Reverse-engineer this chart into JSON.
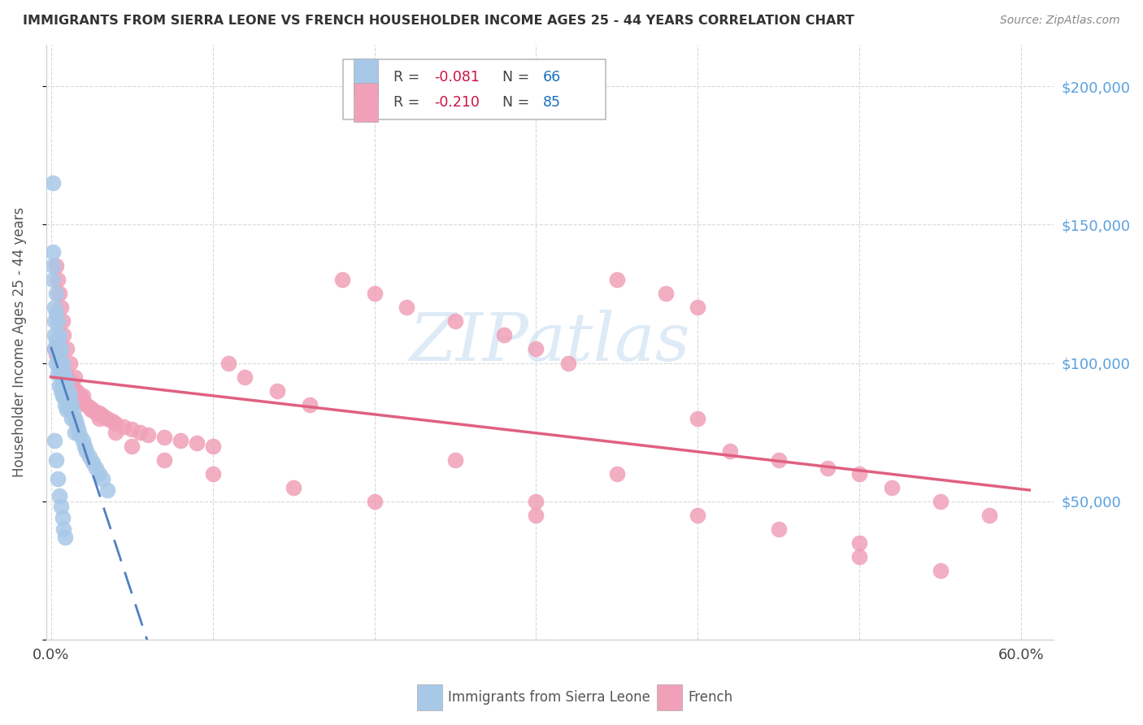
{
  "title": "IMMIGRANTS FROM SIERRA LEONE VS FRENCH HOUSEHOLDER INCOME AGES 25 - 44 YEARS CORRELATION CHART",
  "source": "Source: ZipAtlas.com",
  "ylabel": "Householder Income Ages 25 - 44 years",
  "ytick_values": [
    0,
    50000,
    100000,
    150000,
    200000
  ],
  "ytick_labels": [
    "",
    "$50,000",
    "$100,000",
    "$150,000",
    "$200,000"
  ],
  "ylim": [
    0,
    215000
  ],
  "xlim": [
    -0.003,
    0.62
  ],
  "bg_color": "#ffffff",
  "grid_color": "#d0d0d0",
  "sierra_scatter_color": "#a8c8e8",
  "french_scatter_color": "#f0a0b8",
  "sierra_line_color": "#5080c0",
  "french_line_color": "#e06080",
  "right_tick_color": "#5aa0e0",
  "title_color": "#333333",
  "watermark": "ZIPatlas",
  "watermark_color": "#c8dff0",
  "sl_x": [
    0.001,
    0.001,
    0.001,
    0.001,
    0.002,
    0.002,
    0.002,
    0.002,
    0.003,
    0.003,
    0.003,
    0.003,
    0.004,
    0.004,
    0.004,
    0.004,
    0.005,
    0.005,
    0.005,
    0.005,
    0.006,
    0.006,
    0.006,
    0.006,
    0.007,
    0.007,
    0.007,
    0.007,
    0.008,
    0.008,
    0.008,
    0.009,
    0.009,
    0.009,
    0.01,
    0.01,
    0.01,
    0.011,
    0.011,
    0.012,
    0.012,
    0.013,
    0.013,
    0.014,
    0.015,
    0.015,
    0.016,
    0.017,
    0.018,
    0.02,
    0.021,
    0.022,
    0.024,
    0.026,
    0.028,
    0.03,
    0.032,
    0.035,
    0.002,
    0.003,
    0.004,
    0.005,
    0.006,
    0.007,
    0.008,
    0.009
  ],
  "sl_y": [
    165000,
    140000,
    135000,
    130000,
    120000,
    115000,
    110000,
    105000,
    125000,
    118000,
    108000,
    100000,
    115000,
    108000,
    102000,
    96000,
    110000,
    104000,
    98000,
    92000,
    105000,
    100000,
    96000,
    90000,
    100000,
    96000,
    92000,
    88000,
    97000,
    93000,
    88000,
    95000,
    90000,
    85000,
    93000,
    88000,
    83000,
    90000,
    85000,
    88000,
    83000,
    85000,
    80000,
    82000,
    80000,
    75000,
    78000,
    76000,
    74000,
    72000,
    70000,
    68000,
    66000,
    64000,
    62000,
    60000,
    58000,
    54000,
    72000,
    65000,
    58000,
    52000,
    48000,
    44000,
    40000,
    37000
  ],
  "fr_x": [
    0.002,
    0.003,
    0.004,
    0.005,
    0.006,
    0.007,
    0.008,
    0.009,
    0.01,
    0.011,
    0.012,
    0.013,
    0.014,
    0.015,
    0.016,
    0.017,
    0.018,
    0.019,
    0.02,
    0.022,
    0.024,
    0.026,
    0.028,
    0.03,
    0.032,
    0.035,
    0.038,
    0.04,
    0.045,
    0.05,
    0.055,
    0.06,
    0.07,
    0.08,
    0.09,
    0.1,
    0.11,
    0.12,
    0.14,
    0.16,
    0.18,
    0.2,
    0.22,
    0.25,
    0.28,
    0.3,
    0.32,
    0.35,
    0.38,
    0.4,
    0.42,
    0.45,
    0.48,
    0.5,
    0.52,
    0.55,
    0.58,
    0.003,
    0.004,
    0.005,
    0.006,
    0.007,
    0.008,
    0.01,
    0.012,
    0.015,
    0.02,
    0.025,
    0.03,
    0.04,
    0.05,
    0.07,
    0.1,
    0.15,
    0.2,
    0.3,
    0.4,
    0.25,
    0.35,
    0.3,
    0.4,
    0.45,
    0.5,
    0.5,
    0.55
  ],
  "fr_y": [
    105000,
    103000,
    102000,
    100000,
    100000,
    98000,
    97000,
    96000,
    95000,
    94000,
    93000,
    92000,
    91000,
    90000,
    90000,
    89000,
    88000,
    87000,
    86000,
    85000,
    84000,
    83000,
    82000,
    82000,
    81000,
    80000,
    79000,
    78000,
    77000,
    76000,
    75000,
    74000,
    73000,
    72000,
    71000,
    70000,
    100000,
    95000,
    90000,
    85000,
    130000,
    125000,
    120000,
    115000,
    110000,
    105000,
    100000,
    130000,
    125000,
    120000,
    68000,
    65000,
    62000,
    60000,
    55000,
    50000,
    45000,
    135000,
    130000,
    125000,
    120000,
    115000,
    110000,
    105000,
    100000,
    95000,
    88000,
    83000,
    80000,
    75000,
    70000,
    65000,
    60000,
    55000,
    50000,
    45000,
    80000,
    65000,
    60000,
    50000,
    45000,
    40000,
    35000,
    30000,
    25000
  ]
}
